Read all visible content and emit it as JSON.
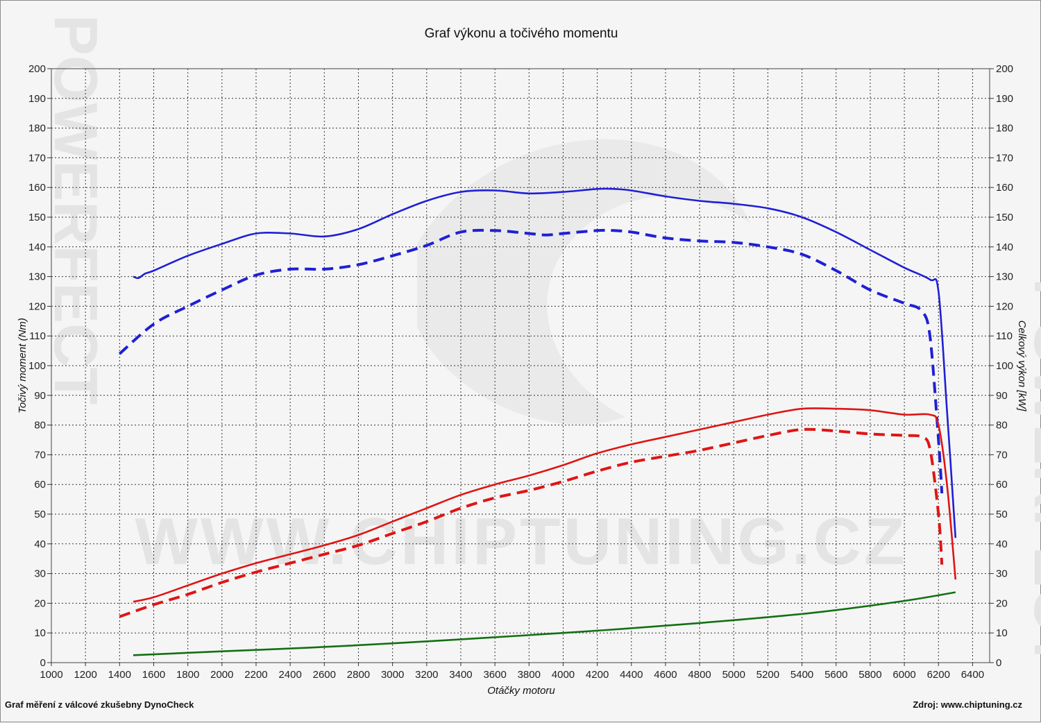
{
  "chart_data": {
    "type": "line",
    "title": "Graf výkonu a točivého momentu",
    "xlabel": "Otáčky motoru",
    "ylabel_left": "Točivý moment (Nm)",
    "ylabel_right": "Celkový výkon [kW]",
    "footer_left": "Graf měření z válcové zkušebny DynoCheck",
    "footer_right": "Zdroj: www.chiptuning.cz",
    "watermark": "WWW.CHIPTUNING.CZ",
    "watermark_side": "POWERFECT",
    "xlim": [
      1000,
      6500
    ],
    "ylim": [
      0,
      200
    ],
    "x_ticks": [
      1000,
      1200,
      1400,
      1600,
      1800,
      2000,
      2200,
      2400,
      2600,
      2800,
      3000,
      3200,
      3400,
      3600,
      3800,
      4000,
      4200,
      4400,
      4600,
      4800,
      5000,
      5200,
      5400,
      5600,
      5800,
      6000,
      6200,
      6400
    ],
    "y_ticks": [
      0,
      10,
      20,
      30,
      40,
      50,
      60,
      70,
      80,
      90,
      100,
      110,
      120,
      130,
      140,
      150,
      160,
      170,
      180,
      190,
      200
    ],
    "grid": true,
    "series": [
      {
        "key": "torque_tuned",
        "axis": "left",
        "color": "#1f1fd6",
        "style": "solid",
        "x": [
          1480,
          1510,
          1550,
          1600,
          1800,
          2000,
          2200,
          2400,
          2600,
          2800,
          3000,
          3200,
          3400,
          3600,
          3800,
          4000,
          4200,
          4300,
          4400,
          4600,
          4800,
          5000,
          5200,
          5400,
          5600,
          5800,
          6000,
          6150,
          6200,
          6250,
          6300
        ],
        "y": [
          130,
          129.5,
          131,
          132,
          137,
          141,
          144.5,
          144.5,
          143.5,
          146,
          151,
          155.5,
          158.5,
          159,
          158,
          158.5,
          159.5,
          159.5,
          159,
          157,
          155.5,
          154.5,
          153,
          150,
          145,
          139,
          133,
          129,
          125,
          85,
          42
        ]
      },
      {
        "key": "torque_stock",
        "axis": "left",
        "color": "#1f1fd6",
        "style": "dashed",
        "x": [
          1400,
          1600,
          1800,
          2000,
          2200,
          2400,
          2600,
          2800,
          3000,
          3200,
          3400,
          3600,
          3800,
          3900,
          4000,
          4200,
          4300,
          4400,
          4600,
          4800,
          5000,
          5200,
          5400,
          5600,
          5800,
          6000,
          6100,
          6150,
          6200,
          6220
        ],
        "y": [
          104,
          114,
          120,
          125.5,
          130.5,
          132.5,
          132.5,
          134,
          137,
          140.5,
          145,
          145.5,
          144.5,
          144,
          144.5,
          145.5,
          145.5,
          145,
          143,
          142,
          141.5,
          140,
          137.5,
          132,
          125.5,
          121,
          118.5,
          110,
          75,
          57
        ]
      },
      {
        "key": "power_tuned",
        "axis": "right",
        "color": "#e01414",
        "style": "solid",
        "x": [
          1480,
          1600,
          1800,
          2000,
          2200,
          2400,
          2600,
          2800,
          3000,
          3200,
          3400,
          3600,
          3800,
          4000,
          4200,
          4400,
          4600,
          4800,
          5000,
          5200,
          5400,
          5600,
          5800,
          6000,
          6150,
          6200,
          6250,
          6300
        ],
        "y": [
          20.5,
          22,
          26,
          30,
          33.5,
          36.5,
          39.5,
          43,
          47.5,
          52,
          56.5,
          60,
          63,
          66.5,
          70.5,
          73.5,
          76,
          78.5,
          81,
          83.5,
          85.5,
          85.5,
          85,
          83.5,
          83.5,
          80,
          60,
          28
        ]
      },
      {
        "key": "power_stock",
        "axis": "right",
        "color": "#e01414",
        "style": "dashed",
        "x": [
          1400,
          1600,
          1800,
          2000,
          2200,
          2400,
          2600,
          2800,
          3000,
          3200,
          3400,
          3600,
          3800,
          4000,
          4200,
          4400,
          4600,
          4800,
          5000,
          5200,
          5400,
          5600,
          5800,
          6000,
          6100,
          6150,
          6200,
          6220
        ],
        "y": [
          15.5,
          19.5,
          23,
          27,
          30.5,
          33.5,
          36.5,
          39.5,
          43.5,
          47.5,
          52,
          55.5,
          58,
          61,
          64.5,
          67.5,
          69.5,
          71.5,
          74,
          76.5,
          78.5,
          78,
          77,
          76.5,
          76,
          72,
          50,
          33
        ]
      },
      {
        "key": "loss",
        "axis": "right",
        "color": "#127012",
        "style": "solid",
        "x": [
          1480,
          2000,
          2500,
          3000,
          3500,
          4000,
          4500,
          5000,
          5500,
          6000,
          6300
        ],
        "y": [
          2.5,
          3.8,
          5,
          6.5,
          8.2,
          10,
          12,
          14.3,
          17,
          20.8,
          23.7
        ]
      }
    ]
  }
}
